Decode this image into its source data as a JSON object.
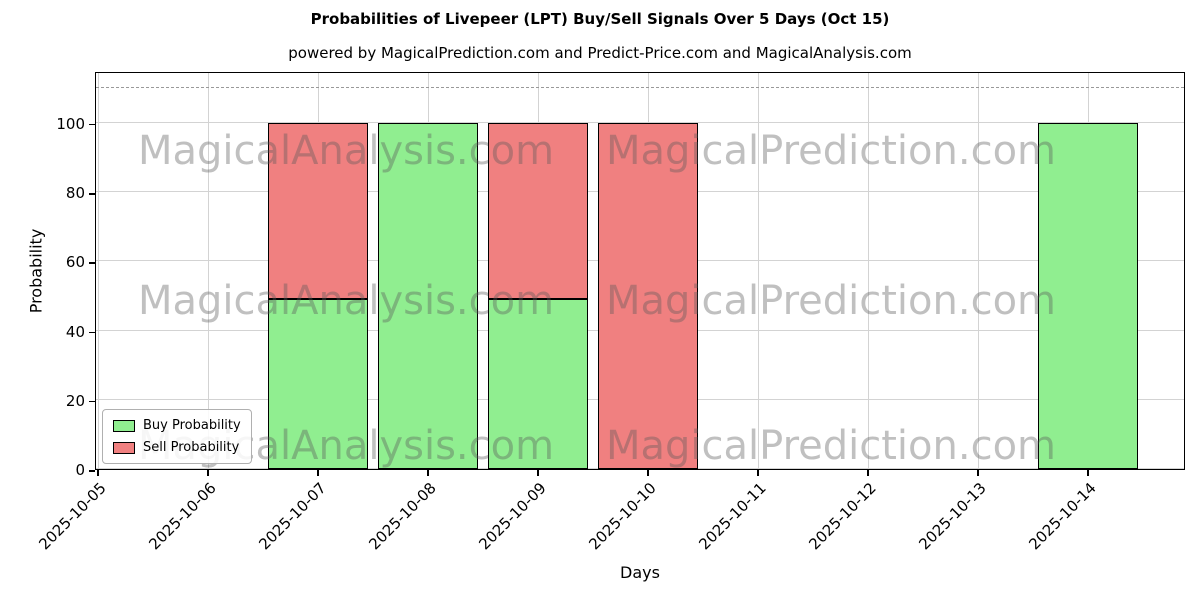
{
  "figure": {
    "title": "Probabilities of Livepeer (LPT) Buy/Sell Signals Over 5 Days (Oct 15)",
    "subtitle": "powered by MagicalPrediction.com and Predict-Price.com and MagicalAnalysis.com"
  },
  "watermarks": {
    "left_text": "MagicalAnalysis.com",
    "right_text": "MagicalPrediction.com"
  },
  "chart_data": {
    "type": "bar",
    "stacked": true,
    "title": "Probabilities of Livepeer (LPT) Buy/Sell Signals Over 5 Days (Oct 15)",
    "xlabel": "Days",
    "ylabel": "Probability",
    "ylim": [
      0,
      115
    ],
    "yticks": [
      0,
      20,
      40,
      60,
      80,
      100
    ],
    "grid": true,
    "dashed_guideline_y": 110,
    "legend_position": "lower left",
    "categories": [
      "2025-10-05",
      "2025-10-06",
      "2025-10-07",
      "2025-10-08",
      "2025-10-09",
      "2025-10-10",
      "2025-10-11",
      "2025-10-12",
      "2025-10-13",
      "2025-10-14"
    ],
    "series": [
      {
        "name": "Buy Probability",
        "color": "#90ee90",
        "values": [
          0,
          0,
          49,
          100,
          49,
          0,
          0,
          0,
          0,
          100
        ]
      },
      {
        "name": "Sell Probability",
        "color": "#f08080",
        "values": [
          0,
          0,
          51,
          0,
          51,
          100,
          0,
          0,
          0,
          0
        ]
      }
    ]
  },
  "colors": {
    "bar_edge": "#000000",
    "grid": "#d3d3d3",
    "dashed_line": "#999999",
    "buy_green": "#90ee90",
    "sell_red": "#f08080"
  }
}
